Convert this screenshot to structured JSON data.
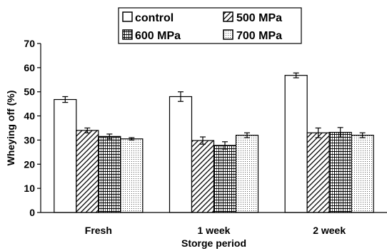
{
  "chart_data": {
    "type": "bar",
    "title": "",
    "xlabel": "Storge period",
    "ylabel": "Wheying off (%)",
    "ylim": [
      0,
      70
    ],
    "yticks": [
      0,
      10,
      20,
      30,
      40,
      50,
      60,
      70
    ],
    "categories": [
      "Fresh",
      "1 week",
      "2 week"
    ],
    "legend_position": "top-center",
    "grid": false,
    "series": [
      {
        "name": "control",
        "pattern": "none",
        "values": [
          46.8,
          48.0,
          56.8
        ],
        "errors": [
          1.2,
          2.0,
          1.0
        ]
      },
      {
        "name": "500 MPa",
        "pattern": "diagonal",
        "values": [
          34.0,
          29.8,
          33.0
        ],
        "errors": [
          1.0,
          1.5,
          2.0
        ]
      },
      {
        "name": "600 MPa",
        "pattern": "brick",
        "values": [
          31.5,
          27.8,
          33.2
        ],
        "errors": [
          1.0,
          1.5,
          2.0
        ]
      },
      {
        "name": "700 MPa",
        "pattern": "dots",
        "values": [
          30.5,
          32.0,
          32.0
        ],
        "errors": [
          0.5,
          1.0,
          1.0
        ]
      }
    ]
  }
}
